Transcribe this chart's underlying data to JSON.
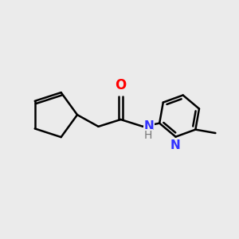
{
  "background_color": "#ebebeb",
  "line_color": "#000000",
  "bond_width": 1.8,
  "figsize": [
    3.0,
    3.0
  ],
  "dpi": 100,
  "N_color": "#3333ff",
  "O_color": "#ff0000",
  "font_size": 11,
  "xlim": [
    0.0,
    10.0
  ],
  "ylim": [
    0.0,
    10.0
  ]
}
